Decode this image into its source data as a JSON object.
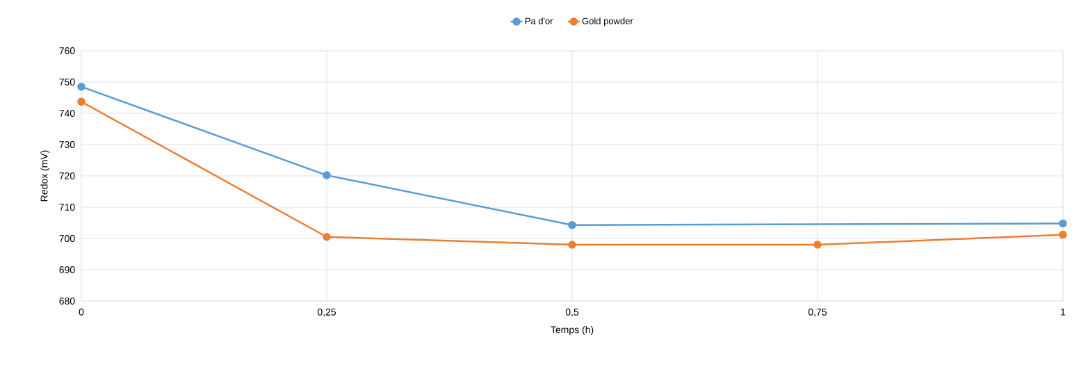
{
  "chart_data": {
    "type": "line",
    "xlabel": "Temps  (h)",
    "ylabel": "Redox  (mV)",
    "series": [
      {
        "name": "Pa d'or",
        "color": "#5b9bd5",
        "x": [
          0,
          0.25,
          0.5,
          1
        ],
        "values": [
          748.5,
          720.2,
          704.3,
          704.8
        ]
      },
      {
        "name": "Gold powder",
        "color": "#ed7d31",
        "x": [
          0,
          0.25,
          0.5,
          0.75,
          1
        ],
        "values": [
          743.7,
          700.5,
          698,
          698,
          701.2
        ]
      }
    ],
    "xlim": [
      0,
      1
    ],
    "xticks": [
      0,
      {
        "value": 0.25,
        "label": "0,25"
      },
      {
        "value": 0.5,
        "label": "0,5"
      },
      {
        "value": 0.75,
        "label": "0,75"
      },
      1
    ],
    "ylim": [
      680,
      760
    ],
    "yticks": [
      680,
      690,
      700,
      710,
      720,
      730,
      740,
      750,
      760
    ],
    "grid": true,
    "legend": "top",
    "marker": "circle",
    "line_style": "solid"
  }
}
